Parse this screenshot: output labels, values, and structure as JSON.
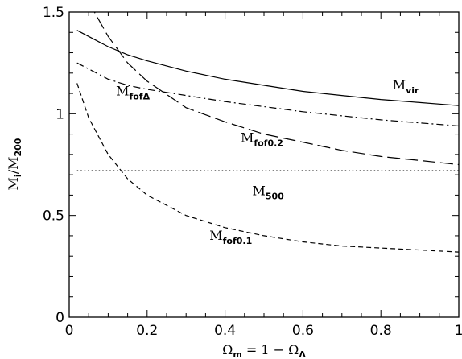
{
  "chart_data": {
    "type": "line",
    "title": "",
    "xlabel": "Ω_m = 1 − Ω_Λ",
    "ylabel": "M_i / M_200",
    "xlim": [
      0,
      1
    ],
    "ylim": [
      0,
      1.5
    ],
    "xticks": [
      0,
      0.2,
      0.4,
      0.6,
      0.8,
      1
    ],
    "xtick_labels": [
      "0",
      "0.2",
      "0.4",
      "0.6",
      "0.8",
      "1"
    ],
    "yticks": [
      0,
      0.5,
      1,
      1.5
    ],
    "ytick_labels": [
      "0",
      "0.5",
      "1",
      "1.5"
    ],
    "grid": false,
    "legend": "none",
    "x": [
      0.02,
      0.05,
      0.1,
      0.15,
      0.2,
      0.3,
      0.4,
      0.5,
      0.6,
      0.7,
      0.8,
      0.9,
      1.0
    ],
    "series": [
      {
        "label_main": "M",
        "label_sub": "vir",
        "dash": "solid",
        "values": [
          1.41,
          1.38,
          1.33,
          1.29,
          1.26,
          1.21,
          1.17,
          1.14,
          1.11,
          1.09,
          1.07,
          1.055,
          1.04
        ]
      },
      {
        "label_main": "M",
        "label_sub": "fofΔ",
        "dash": "dashdot",
        "values": [
          1.25,
          1.22,
          1.17,
          1.14,
          1.12,
          1.09,
          1.06,
          1.035,
          1.01,
          0.99,
          0.97,
          0.955,
          0.94
        ]
      },
      {
        "label_main": "M",
        "label_sub": "fof0.2",
        "dash": "longdash",
        "values": [
          null,
          1.55,
          1.38,
          1.25,
          1.16,
          1.03,
          0.96,
          0.9,
          0.86,
          0.82,
          0.79,
          0.77,
          0.75
        ]
      },
      {
        "label_main": "M",
        "label_sub": "500",
        "dash": "dotted",
        "values": [
          0.72,
          0.72,
          0.72,
          0.72,
          0.72,
          0.72,
          0.72,
          0.72,
          0.72,
          0.72,
          0.72,
          0.72,
          0.72
        ]
      },
      {
        "label_main": "M",
        "label_sub": "fof0.1",
        "dash": "shortdash",
        "values": [
          1.15,
          0.98,
          0.8,
          0.68,
          0.6,
          0.5,
          0.44,
          0.4,
          0.37,
          0.35,
          0.34,
          0.33,
          0.32
        ]
      }
    ]
  }
}
